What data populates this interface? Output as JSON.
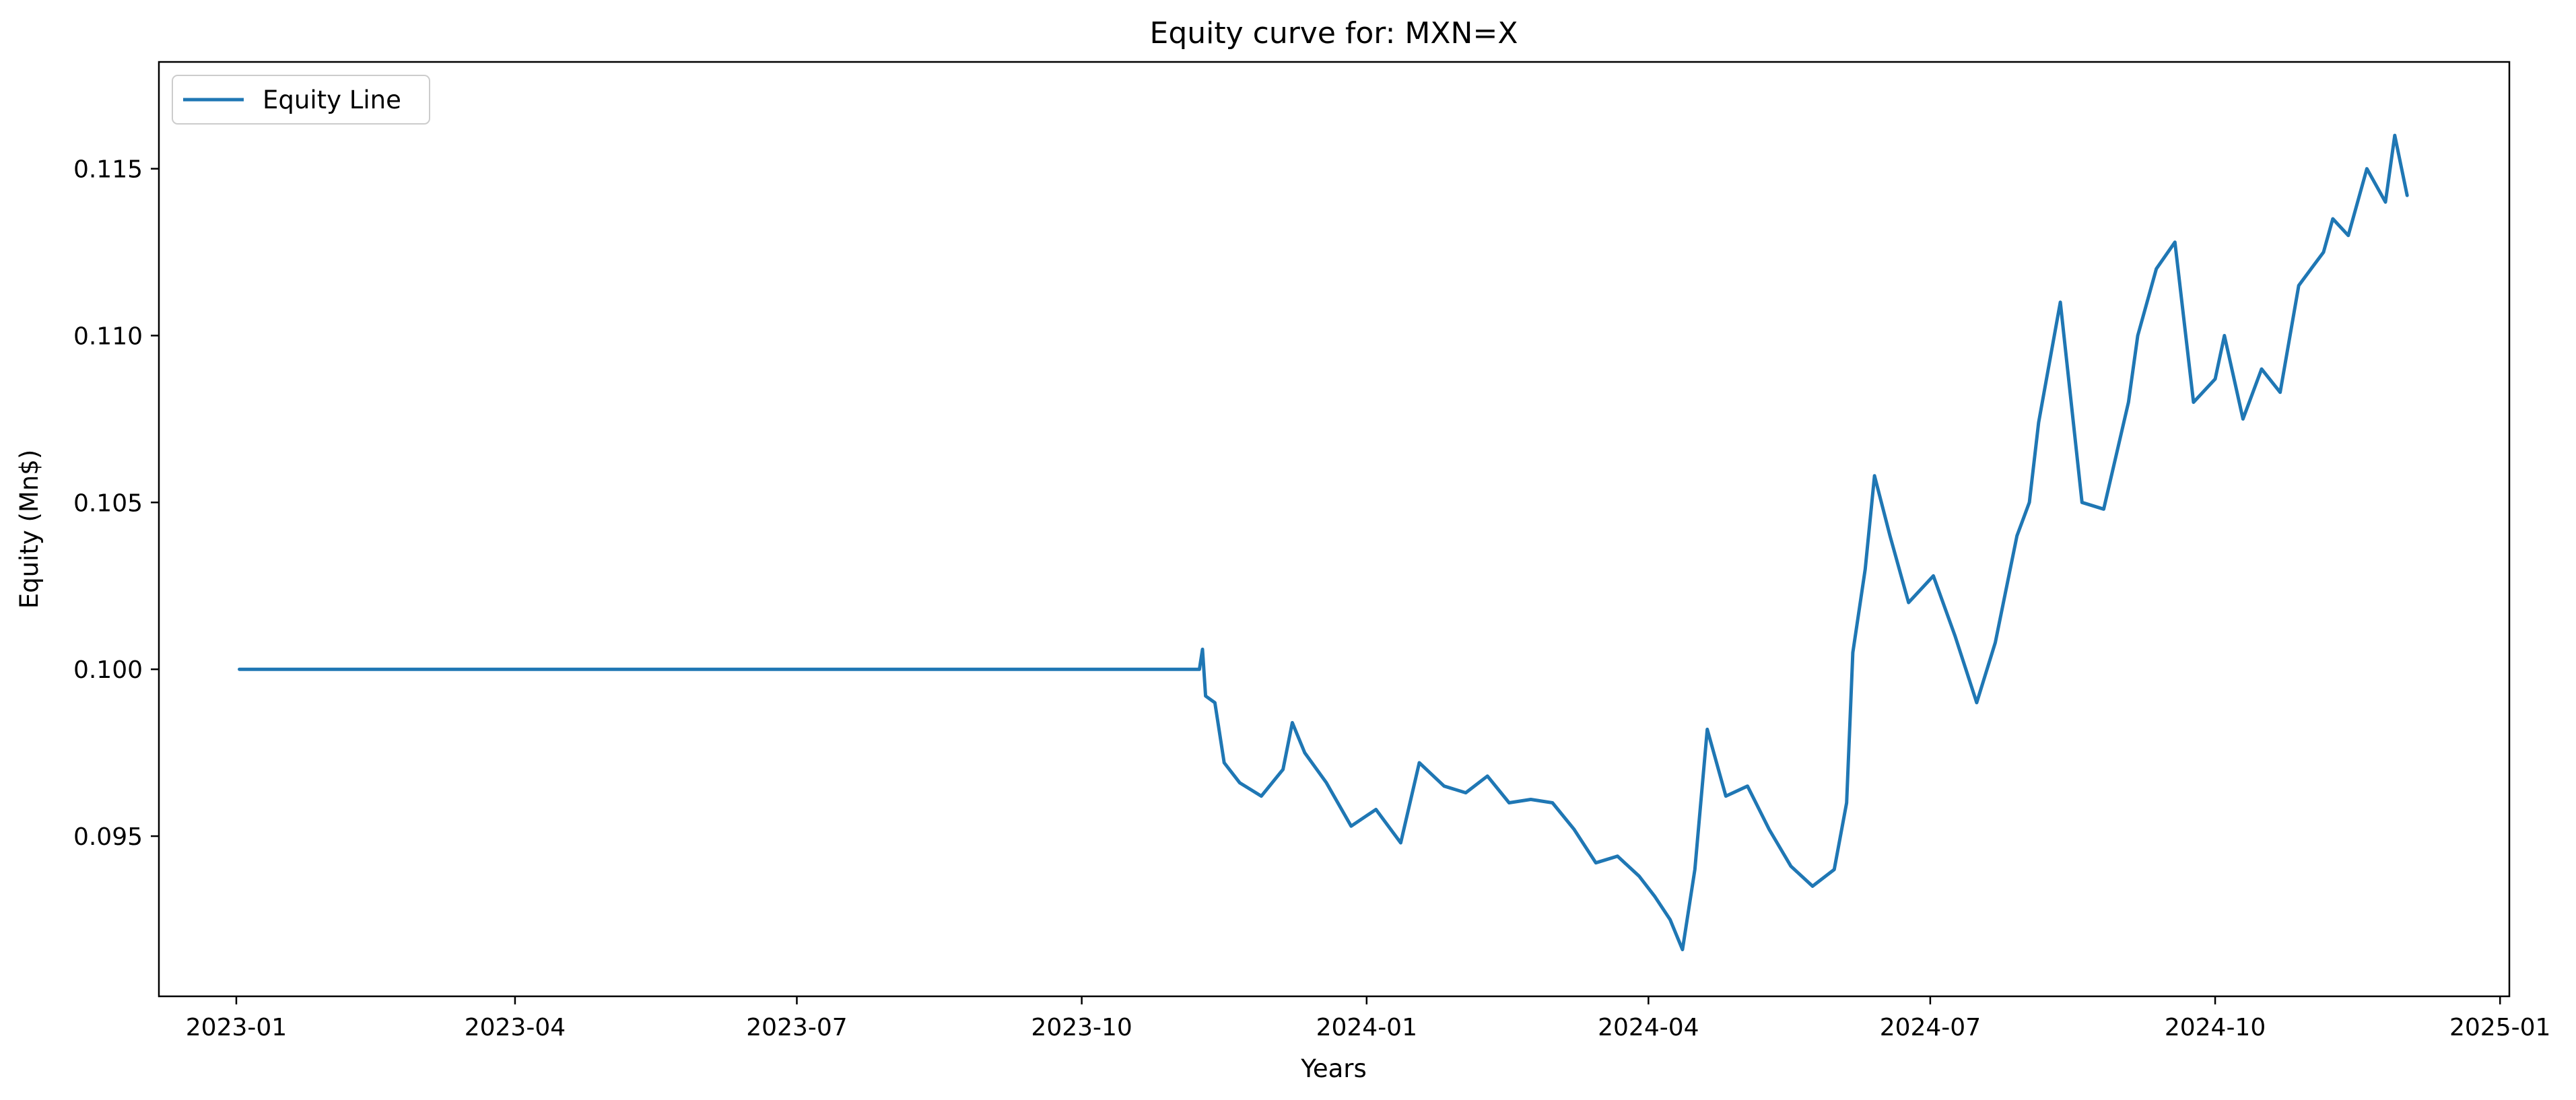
{
  "chart_data": {
    "type": "line",
    "title": "Equity curve for: MXN=X",
    "xlabel": "Years",
    "ylabel": "Equity (Mn$)",
    "x_tick_labels": [
      "2023-01",
      "2023-04",
      "2023-07",
      "2023-10",
      "2024-01",
      "2024-04",
      "2024-07",
      "2024-10",
      "2025-01"
    ],
    "x_tick_dates": [
      "2023-01-01",
      "2023-04-01",
      "2023-07-01",
      "2023-10-01",
      "2024-01-01",
      "2024-04-01",
      "2024-07-01",
      "2024-10-01",
      "2025-01-01"
    ],
    "y_tick_labels": [
      "0.095",
      "0.100",
      "0.105",
      "0.110",
      "0.115"
    ],
    "y_ticks": [
      0.095,
      0.1,
      0.105,
      0.11,
      0.115
    ],
    "xlim": [
      "2022-12-07",
      "2025-01-04"
    ],
    "ylim": [
      0.0902,
      0.1182
    ],
    "grid": false,
    "legend_position": "upper left",
    "colors": {
      "series": "#1f77b4",
      "axes": "#000000",
      "legend_border": "#cccccc"
    },
    "series": [
      {
        "name": "Equity Line",
        "x": [
          "2023-01-02",
          "2023-11-08",
          "2023-11-09",
          "2023-11-10",
          "2023-11-13",
          "2023-11-16",
          "2023-11-21",
          "2023-11-28",
          "2023-12-05",
          "2023-12-08",
          "2023-12-12",
          "2023-12-19",
          "2023-12-27",
          "2024-01-04",
          "2024-01-12",
          "2024-01-18",
          "2024-01-26",
          "2024-02-02",
          "2024-02-09",
          "2024-02-16",
          "2024-02-23",
          "2024-03-01",
          "2024-03-08",
          "2024-03-15",
          "2024-03-22",
          "2024-03-29",
          "2024-04-03",
          "2024-04-08",
          "2024-04-12",
          "2024-04-16",
          "2024-04-20",
          "2024-04-26",
          "2024-05-03",
          "2024-05-10",
          "2024-05-17",
          "2024-05-24",
          "2024-05-31",
          "2024-06-04",
          "2024-06-06",
          "2024-06-10",
          "2024-06-13",
          "2024-06-18",
          "2024-06-24",
          "2024-07-02",
          "2024-07-09",
          "2024-07-16",
          "2024-07-22",
          "2024-07-29",
          "2024-08-02",
          "2024-08-05",
          "2024-08-12",
          "2024-08-19",
          "2024-08-26",
          "2024-09-03",
          "2024-09-06",
          "2024-09-12",
          "2024-09-18",
          "2024-09-24",
          "2024-10-01",
          "2024-10-04",
          "2024-10-10",
          "2024-10-16",
          "2024-10-22",
          "2024-10-28",
          "2024-11-01",
          "2024-11-05",
          "2024-11-08",
          "2024-11-13",
          "2024-11-19",
          "2024-11-25",
          "2024-11-28",
          "2024-12-02"
        ],
        "values": [
          0.1,
          0.1,
          0.1006,
          0.0992,
          0.099,
          0.0972,
          0.0966,
          0.0962,
          0.097,
          0.0984,
          0.0975,
          0.0966,
          0.0953,
          0.0958,
          0.0948,
          0.0972,
          0.0965,
          0.0963,
          0.0968,
          0.096,
          0.0961,
          0.096,
          0.0952,
          0.0942,
          0.0944,
          0.0938,
          0.0932,
          0.0925,
          0.0916,
          0.094,
          0.0982,
          0.0962,
          0.0965,
          0.0952,
          0.0941,
          0.0935,
          0.094,
          0.096,
          0.1005,
          0.103,
          0.1058,
          0.104,
          0.102,
          0.1028,
          0.101,
          0.099,
          0.1008,
          0.104,
          0.105,
          0.1074,
          0.111,
          0.105,
          0.1048,
          0.108,
          0.11,
          0.112,
          0.1128,
          0.108,
          0.1087,
          0.11,
          0.1075,
          0.109,
          0.1083,
          0.1115,
          0.112,
          0.1125,
          0.1135,
          0.113,
          0.115,
          0.114,
          0.116,
          0.1142
        ]
      }
    ]
  }
}
